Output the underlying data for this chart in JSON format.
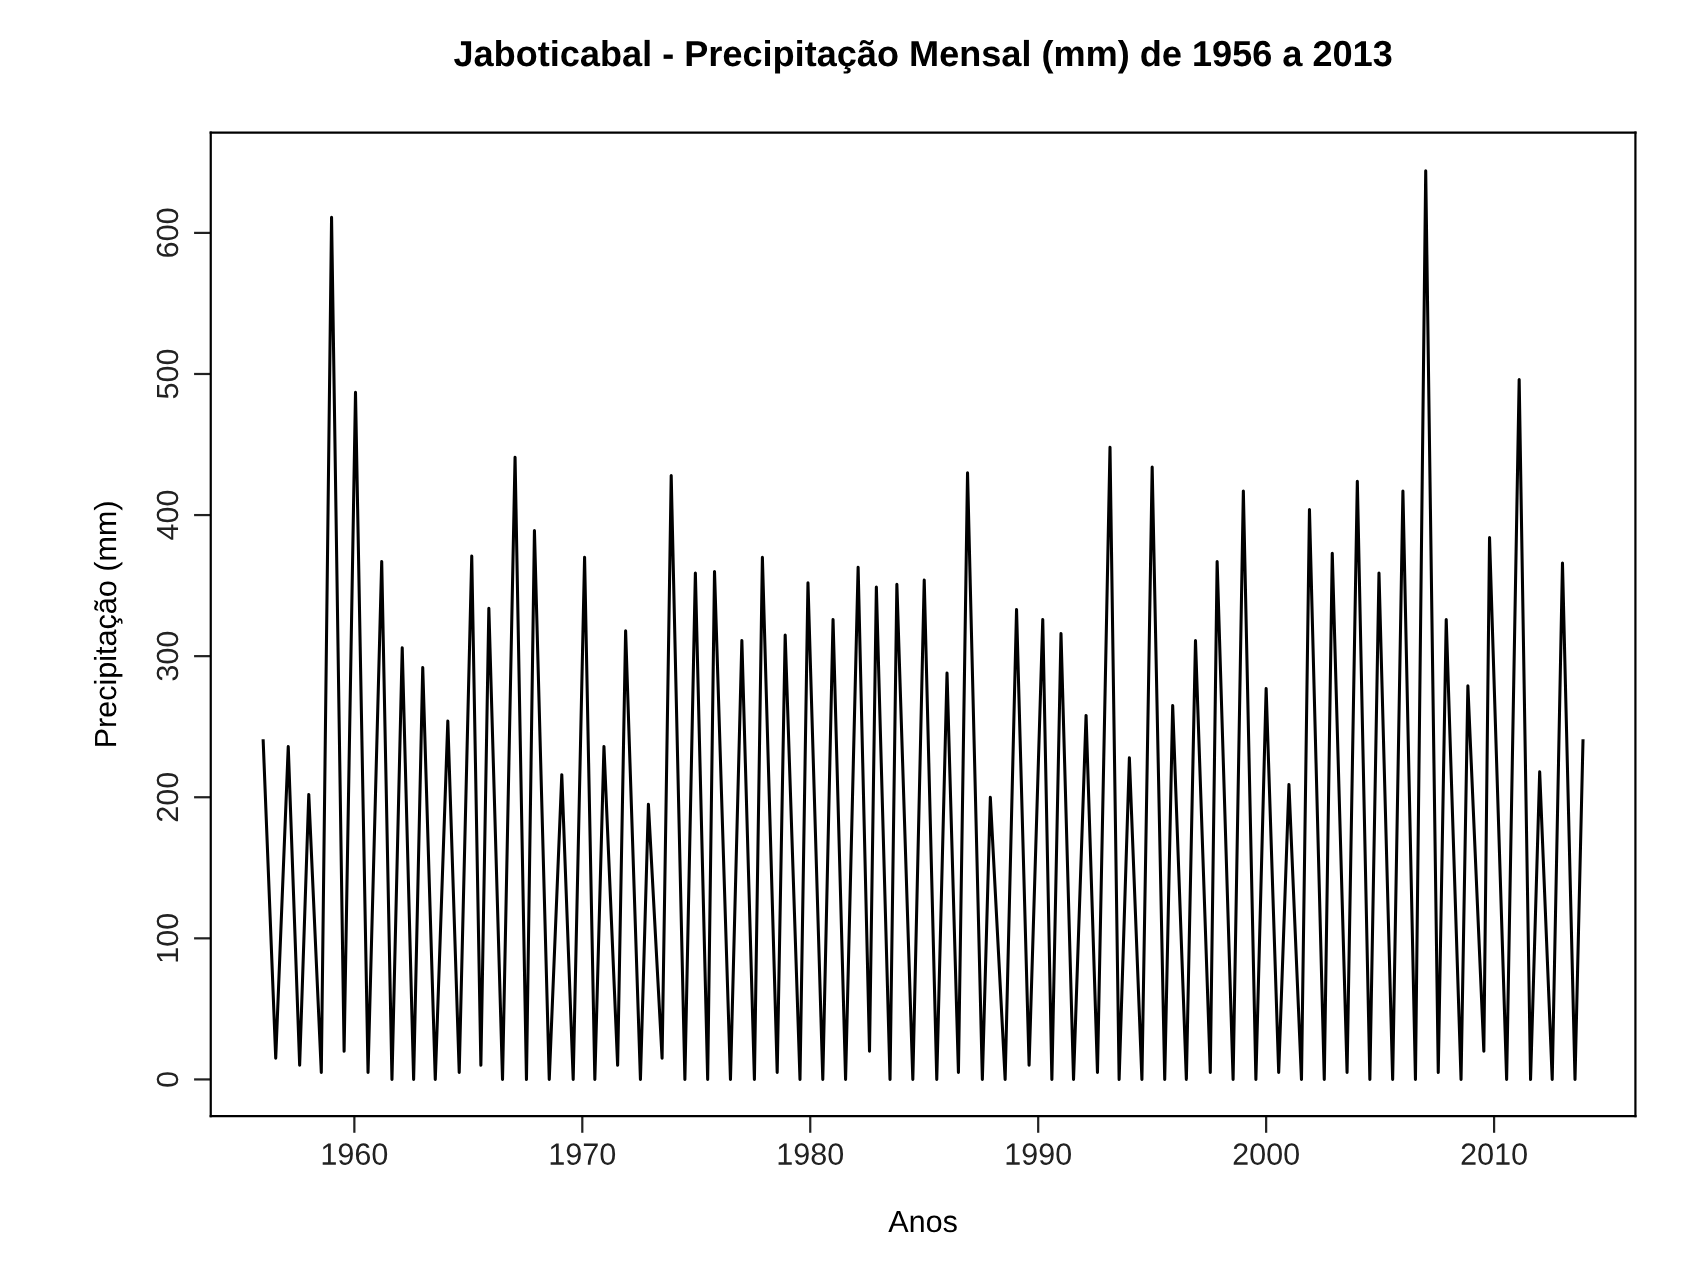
{
  "chart_data": {
    "type": "line",
    "title": "Jaboticabal - Precipitação Mensal (mm) de 1956 a 2013",
    "xlabel": "Anos",
    "ylabel": "Precipitação (mm)",
    "x": [
      1956.0,
      1956.55,
      1957.1,
      1957.6,
      1958.0,
      1958.55,
      1959.0,
      1959.55,
      1960.05,
      1960.6,
      1961.2,
      1961.65,
      1962.1,
      1962.6,
      1963.0,
      1963.55,
      1964.1,
      1964.6,
      1965.15,
      1965.55,
      1965.9,
      1966.5,
      1967.05,
      1967.55,
      1967.9,
      1968.55,
      1969.1,
      1969.6,
      1970.1,
      1970.55,
      1970.95,
      1971.55,
      1971.9,
      1972.55,
      1972.9,
      1973.5,
      1973.9,
      1974.5,
      1974.96,
      1975.5,
      1975.8,
      1976.5,
      1977.0,
      1977.55,
      1977.9,
      1978.55,
      1978.9,
      1979.55,
      1979.9,
      1980.55,
      1981.0,
      1981.55,
      1982.1,
      1982.6,
      1982.9,
      1983.5,
      1983.8,
      1984.5,
      1985.0,
      1985.55,
      1986.0,
      1986.5,
      1986.9,
      1987.55,
      1987.9,
      1988.55,
      1989.05,
      1989.6,
      1990.2,
      1990.6,
      1991.0,
      1991.55,
      1992.1,
      1992.6,
      1993.15,
      1993.55,
      1994.0,
      1994.55,
      1995.0,
      1995.55,
      1995.9,
      1996.5,
      1996.9,
      1997.55,
      1997.85,
      1998.55,
      1999.0,
      1999.55,
      2000.0,
      2000.55,
      2001.0,
      2001.55,
      2001.9,
      2002.55,
      2002.9,
      2003.55,
      2004.0,
      2004.55,
      2004.95,
      2005.55,
      2006.0,
      2006.55,
      2007.0,
      2007.55,
      2007.9,
      2008.55,
      2008.85,
      2009.55,
      2009.8,
      2010.55,
      2011.1,
      2011.6,
      2012.0,
      2012.55,
      2013.0,
      2013.55,
      2013.9
    ],
    "series": [
      {
        "color": "#000000",
        "values": [
          240,
          15,
          236,
          10,
          202,
          5,
          611,
          20,
          487,
          5,
          367,
          0,
          306,
          0,
          292,
          0,
          254,
          5,
          371,
          10,
          334,
          0,
          441,
          0,
          389,
          0,
          216,
          0,
          370,
          0,
          236,
          10,
          318,
          0,
          195,
          15,
          428,
          0,
          359,
          0,
          360,
          0,
          311,
          0,
          370,
          5,
          315,
          0,
          352,
          0,
          326,
          0,
          363,
          20,
          349,
          0,
          351,
          0,
          354,
          0,
          288,
          5,
          430,
          0,
          200,
          0,
          333,
          10,
          326,
          0,
          316,
          0,
          258,
          5,
          448,
          0,
          228,
          0,
          434,
          0,
          265,
          0,
          311,
          5,
          367,
          0,
          417,
          0,
          277,
          5,
          209,
          0,
          404,
          0,
          373,
          5,
          424,
          0,
          359,
          0,
          417,
          0,
          644,
          5,
          326,
          0,
          279,
          20,
          384,
          0,
          496,
          0,
          218,
          0,
          366,
          0,
          240
        ]
      }
    ],
    "xlim": [
      1953.7,
      2016.2
    ],
    "xticks": [
      1960,
      1970,
      1980,
      1990,
      2000,
      2010
    ],
    "ylim": [
      -26,
      671
    ],
    "yticks": [
      0,
      100,
      200,
      300,
      400,
      500,
      600
    ],
    "grid": false,
    "legend": false,
    "marker": "none",
    "line_style": "solid"
  }
}
